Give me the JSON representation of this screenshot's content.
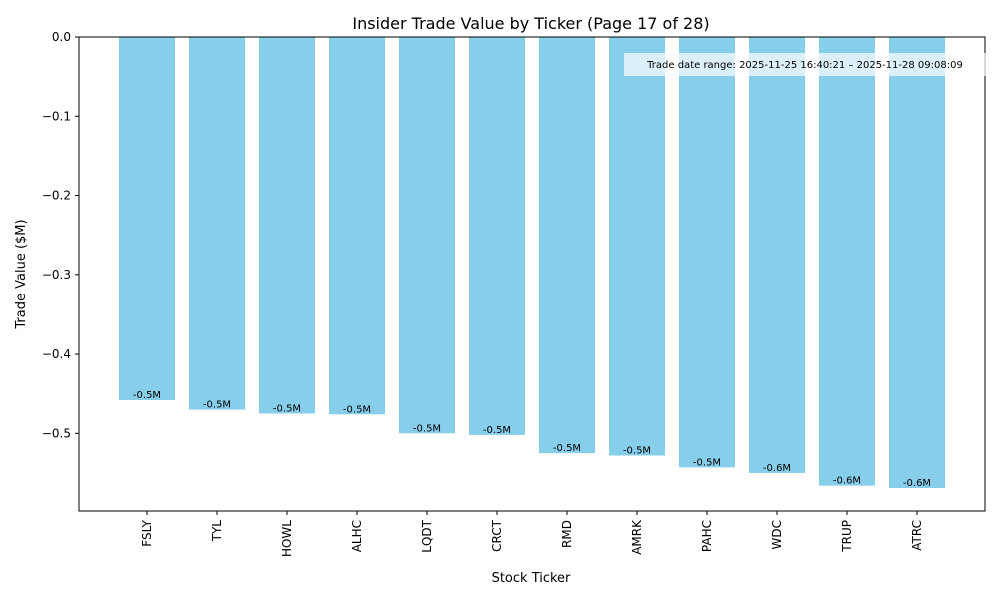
{
  "chart_data": {
    "type": "bar",
    "title": "Insider Trade Value by Ticker (Page 17 of 28)",
    "xlabel": "Stock Ticker",
    "ylabel": "Trade Value ($M)",
    "categories": [
      "FSLY",
      "TYL",
      "HOWL",
      "ALHC",
      "LQDT",
      "CRCT",
      "RMD",
      "AMRK",
      "PAHC",
      "WDC",
      "TRUP",
      "ATRC"
    ],
    "values": [
      -0.458,
      -0.47,
      -0.475,
      -0.476,
      -0.5,
      -0.502,
      -0.525,
      -0.528,
      -0.543,
      -0.55,
      -0.566,
      -0.569
    ],
    "bar_labels": [
      "-0.5M",
      "-0.5M",
      "-0.5M",
      "-0.5M",
      "-0.5M",
      "-0.5M",
      "-0.5M",
      "-0.5M",
      "-0.5M",
      "-0.6M",
      "-0.6M",
      "-0.6M"
    ],
    "yticks": [
      0.0,
      -0.1,
      -0.2,
      -0.3,
      -0.4,
      -0.5
    ],
    "ytick_labels": [
      "0.0",
      "−0.1",
      "−0.2",
      "−0.3",
      "−0.4",
      "−0.5"
    ],
    "ylim": [
      -0.598,
      0.0
    ],
    "grid": false,
    "bar_color": "#87CEEB",
    "annotation": "Trade date range: 2025-11-25 16:40:21 – 2025-11-28 09:08:09"
  }
}
